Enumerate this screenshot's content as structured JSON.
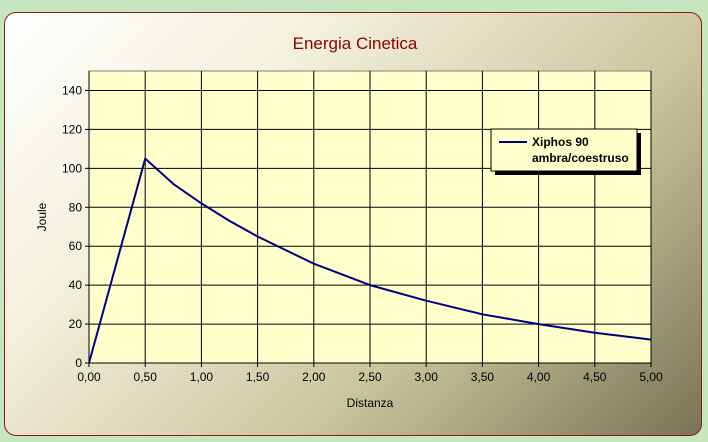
{
  "chart_data": {
    "type": "line",
    "title": "Energia Cinetica",
    "xlabel": "Distanza",
    "ylabel": "Joule",
    "xlim": [
      0,
      5
    ],
    "ylim": [
      0,
      150
    ],
    "x_ticks": [
      "0,00",
      "0,50",
      "1,00",
      "1,50",
      "2,00",
      "2,50",
      "3,00",
      "3,50",
      "4,00",
      "4,50",
      "5,00"
    ],
    "y_ticks": [
      "0",
      "20",
      "40",
      "60",
      "80",
      "100",
      "120",
      "140"
    ],
    "grid": true,
    "legend_position": "top-right",
    "legend_lines": [
      "Xiphos 90",
      "ambra/coestruso"
    ],
    "series": [
      {
        "color": "#000080",
        "x": [
          0,
          0.5,
          0.75,
          1.0,
          1.25,
          1.5,
          2.0,
          2.5,
          3.0,
          3.5,
          4.0,
          4.5,
          5.0
        ],
        "y": [
          0,
          105,
          92,
          82,
          73,
          65,
          51,
          40,
          32,
          25,
          20,
          15.5,
          12
        ]
      }
    ]
  }
}
